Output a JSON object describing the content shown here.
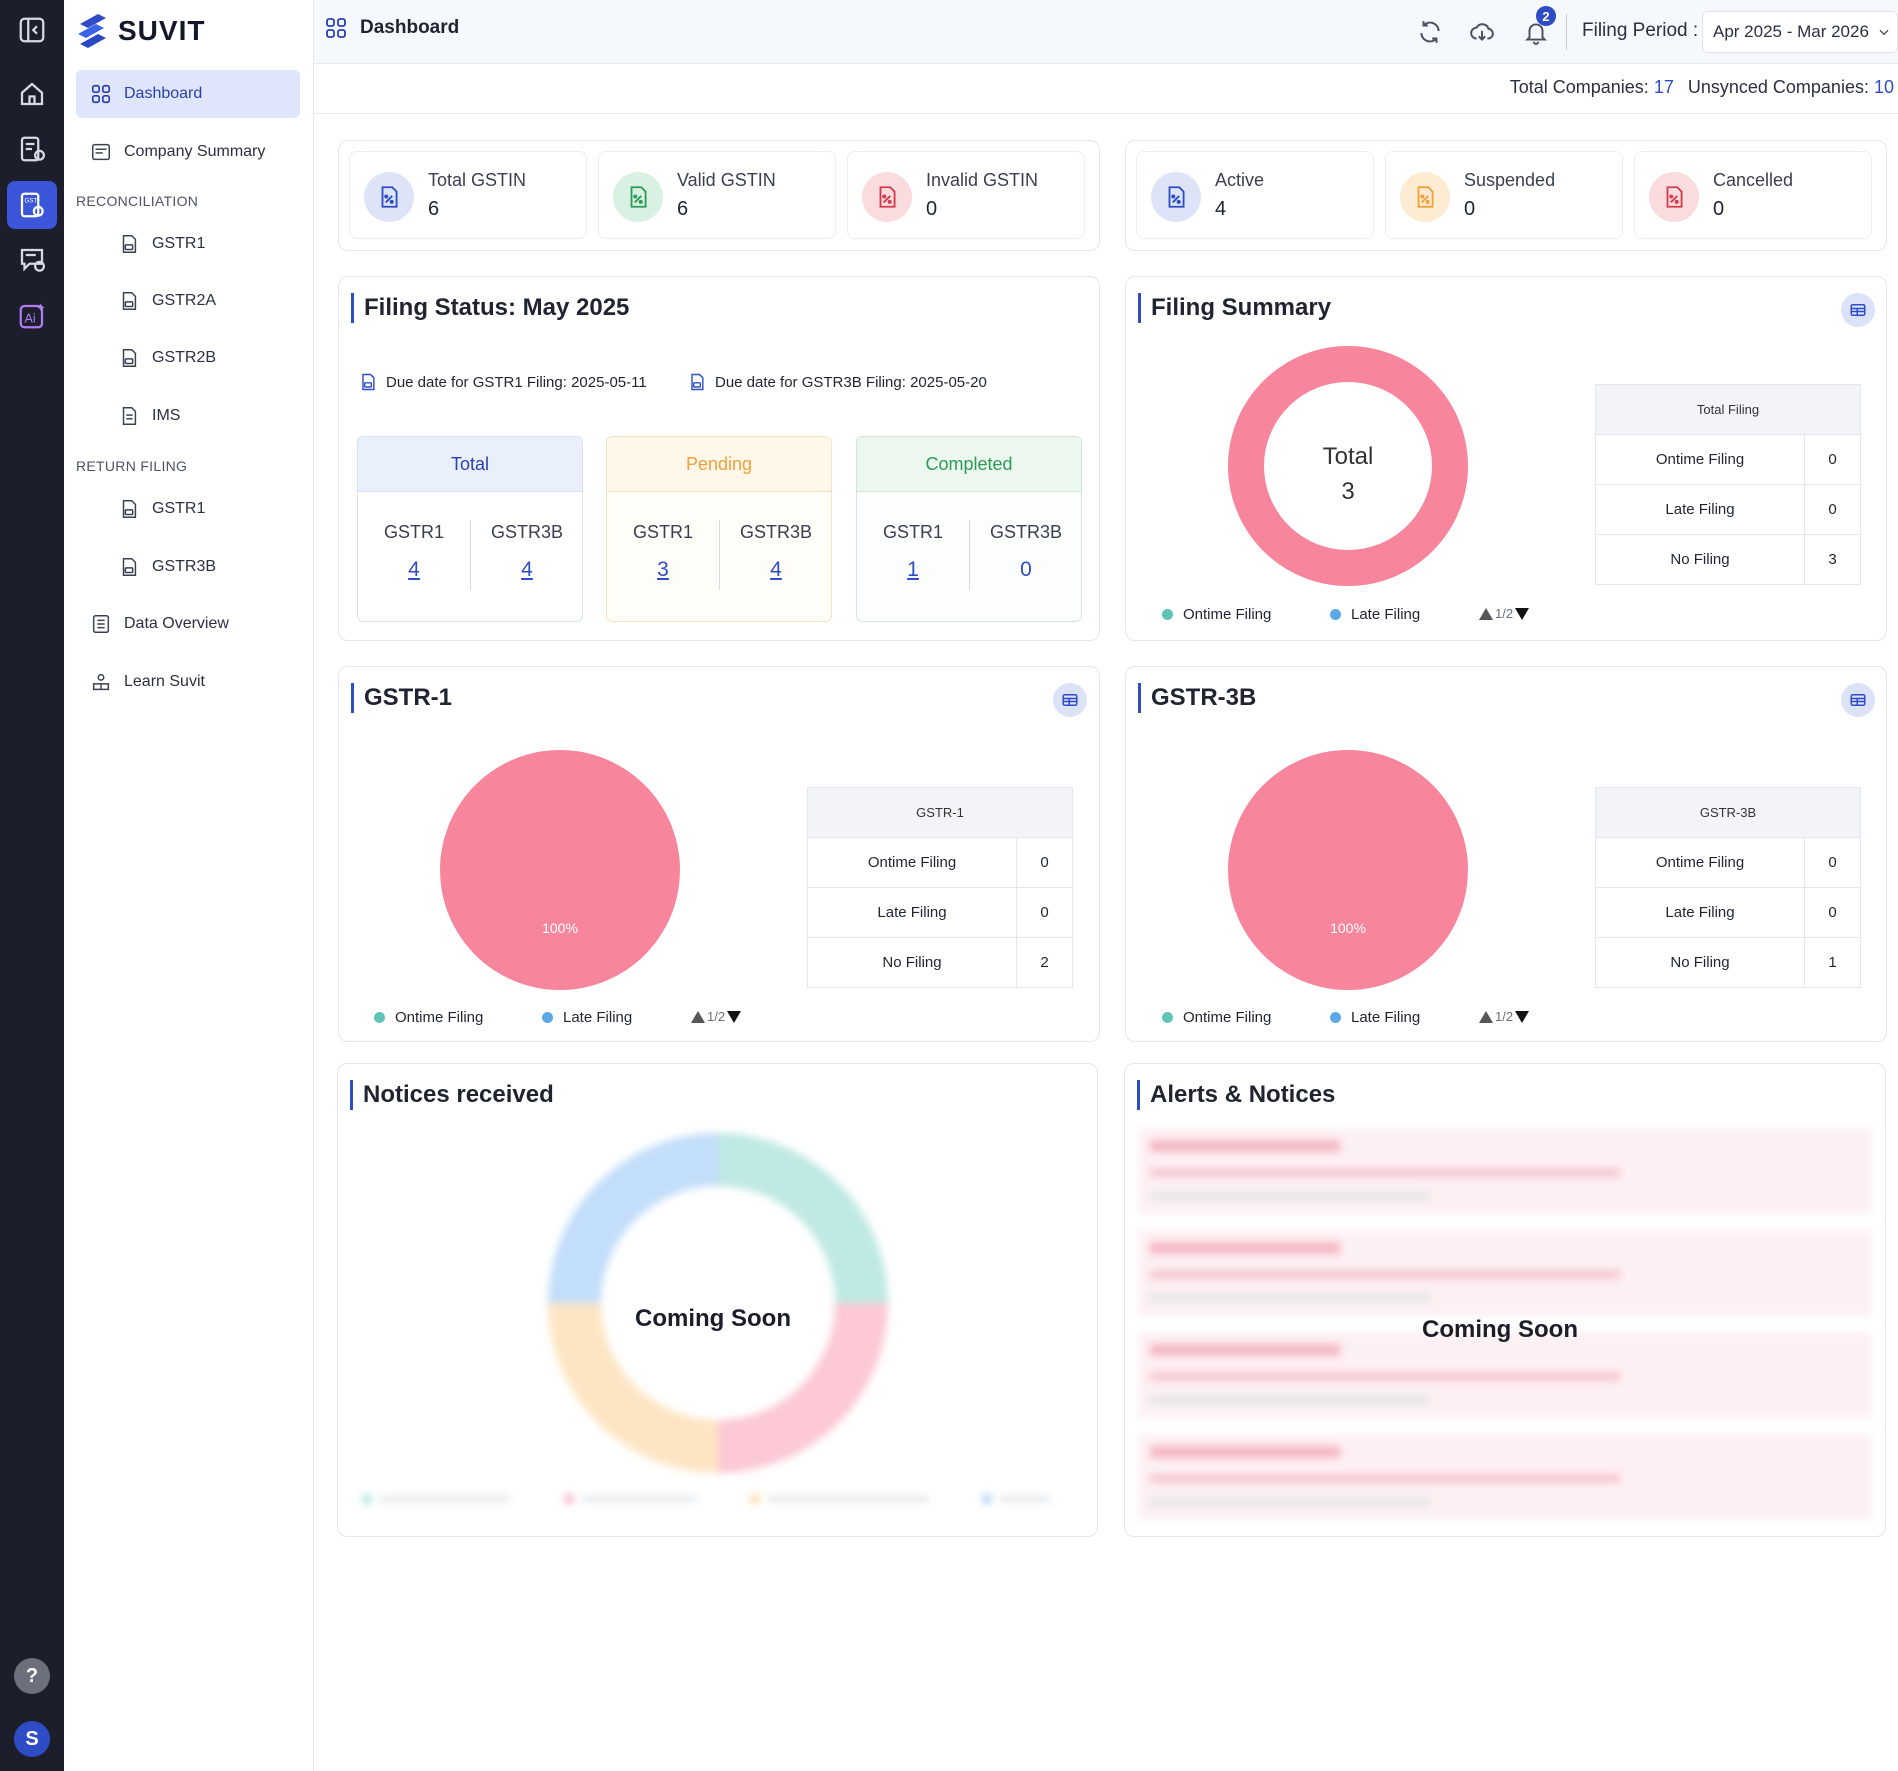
{
  "brand": {
    "name": "SUVIT"
  },
  "nav": {
    "dashboard": "Dashboard",
    "company_summary": "Company Summary",
    "reconciliation_header": "RECONCILIATION",
    "reconciliation_items": [
      "GSTR1",
      "GSTR2A",
      "GSTR2B",
      "IMS"
    ],
    "return_filing_header": "RETURN FILING",
    "return_filing_items": [
      "GSTR1",
      "GSTR3B"
    ],
    "data_overview": "Data Overview",
    "learn_suvit": "Learn Suvit"
  },
  "rail": {
    "help_label": "?",
    "avatar_letter": "S"
  },
  "header": {
    "title": "Dashboard",
    "notification_count": "2",
    "filing_period_label": "Filing Period :",
    "filing_period_value": "Apr 2025 - Mar 2026"
  },
  "company_counts": {
    "total_label": "Total Companies:",
    "total_value": "17",
    "unsynced_label": "Unsynced Companies:",
    "unsynced_value": "10"
  },
  "gstin_stats": [
    {
      "label": "Total GSTIN",
      "value": "6"
    },
    {
      "label": "Valid GSTIN",
      "value": "6"
    },
    {
      "label": "Invalid GSTIN",
      "value": "0"
    }
  ],
  "status_stats": [
    {
      "label": "Active",
      "value": "4"
    },
    {
      "label": "Suspended",
      "value": "0"
    },
    {
      "label": "Cancelled",
      "value": "0"
    }
  ],
  "filing_status": {
    "title": "Filing Status: May 2025",
    "due_gstr1": "Due date for GSTR1 Filing: 2025-05-11",
    "due_gstr3b": "Due date for GSTR3B Filing: 2025-05-20",
    "columns": [
      {
        "name": "Total",
        "gstr1_label": "GSTR1",
        "gstr1": "4",
        "gstr3b_label": "GSTR3B",
        "gstr3b": "4"
      },
      {
        "name": "Pending",
        "gstr1_label": "GSTR1",
        "gstr1": "3",
        "gstr3b_label": "GSTR3B",
        "gstr3b": "4"
      },
      {
        "name": "Completed",
        "gstr1_label": "GSTR1",
        "gstr1": "1",
        "gstr3b_label": "GSTR3B",
        "gstr3b": "0"
      }
    ]
  },
  "filing_summary": {
    "title": "Filing Summary",
    "center_label": "Total",
    "center_value": "3",
    "table_header": "Total Filing",
    "rows": [
      {
        "label": "Ontime Filing",
        "value": "0"
      },
      {
        "label": "Late Filing",
        "value": "0"
      },
      {
        "label": "No Filing",
        "value": "3"
      }
    ],
    "legend": [
      "Ontime Filing",
      "Late Filing"
    ],
    "pager": "1/2"
  },
  "gstr1_card": {
    "title": "GSTR-1",
    "pie_label": "100%",
    "table_header": "GSTR-1",
    "rows": [
      {
        "label": "Ontime Filing",
        "value": "0"
      },
      {
        "label": "Late Filing",
        "value": "0"
      },
      {
        "label": "No Filing",
        "value": "2"
      }
    ],
    "legend": [
      "Ontime Filing",
      "Late Filing"
    ],
    "pager": "1/2"
  },
  "gstr3b_card": {
    "title": "GSTR-3B",
    "pie_label": "100%",
    "table_header": "GSTR-3B",
    "rows": [
      {
        "label": "Ontime Filing",
        "value": "0"
      },
      {
        "label": "Late Filing",
        "value": "0"
      },
      {
        "label": "No Filing",
        "value": "1"
      }
    ],
    "legend": [
      "Ontime Filing",
      "Late Filing"
    ],
    "pager": "1/2"
  },
  "notices": {
    "title": "Notices received",
    "overlay": "Coming Soon"
  },
  "alerts": {
    "title": "Alerts & Notices",
    "overlay": "Coming Soon"
  },
  "colors": {
    "accent": "#2f4cc7",
    "pink": "#f7869c",
    "teal": "#5ec4b6",
    "blue_light": "#5aa9e6",
    "rail": "#1c1f2b"
  },
  "chart_data": [
    {
      "type": "pie",
      "title": "Filing Summary",
      "donut": true,
      "categories": [
        "Ontime Filing",
        "Late Filing",
        "No Filing"
      ],
      "values": [
        0,
        0,
        3
      ]
    },
    {
      "type": "pie",
      "title": "GSTR-1",
      "categories": [
        "Ontime Filing",
        "Late Filing",
        "No Filing"
      ],
      "values": [
        0,
        0,
        2
      ]
    },
    {
      "type": "pie",
      "title": "GSTR-3B",
      "categories": [
        "Ontime Filing",
        "Late Filing",
        "No Filing"
      ],
      "values": [
        0,
        0,
        1
      ]
    }
  ]
}
